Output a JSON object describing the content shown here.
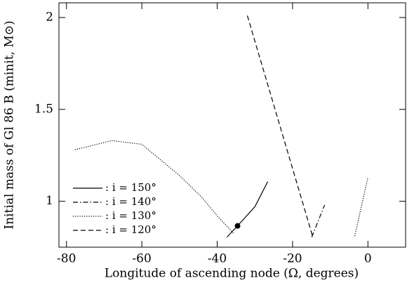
{
  "chart_data": {
    "type": "line",
    "xlabel": "Longitude of ascending node (Ω, degrees)",
    "ylabel": "Initial mass of Gl 86 B (minit, M⊙)",
    "xlim": [
      -82,
      10
    ],
    "ylim": [
      0.75,
      2.08
    ],
    "xticks": [
      -80,
      -60,
      -40,
      -20,
      0
    ],
    "yticks": [
      1,
      1.5,
      2
    ],
    "legend": "lower left",
    "series": [
      {
        "name": ": i = 150°",
        "color": "#000",
        "dash": "solid",
        "x": [
          -37.4,
          -34.6,
          -30,
          -26.6
        ],
        "values": [
          0.805,
          0.866,
          0.97,
          1.107
        ]
      },
      {
        "name": ": i = 140°",
        "color": "#000",
        "dash": "dashdot",
        "x": [
          -14.9,
          -11.5
        ],
        "values": [
          0.805,
          0.98
        ]
      },
      {
        "name": ": i = 130°",
        "color": "#000",
        "dash": "dotted",
        "x": [
          -77.8,
          -68,
          -60,
          -50,
          -44,
          -40,
          -35.6,
          null,
          -3.5,
          0
        ],
        "values": [
          1.28,
          1.33,
          1.31,
          1.14,
          1.02,
          0.92,
          0.825,
          null,
          0.81,
          1.13
        ]
      },
      {
        "name": ": i = 120°",
        "color": "#000",
        "dash": "dashed",
        "x": [
          -32,
          -14.7
        ],
        "values": [
          2.01,
          0.81
        ]
      }
    ],
    "point": {
      "x": -34.6,
      "y": 0.866
    }
  }
}
